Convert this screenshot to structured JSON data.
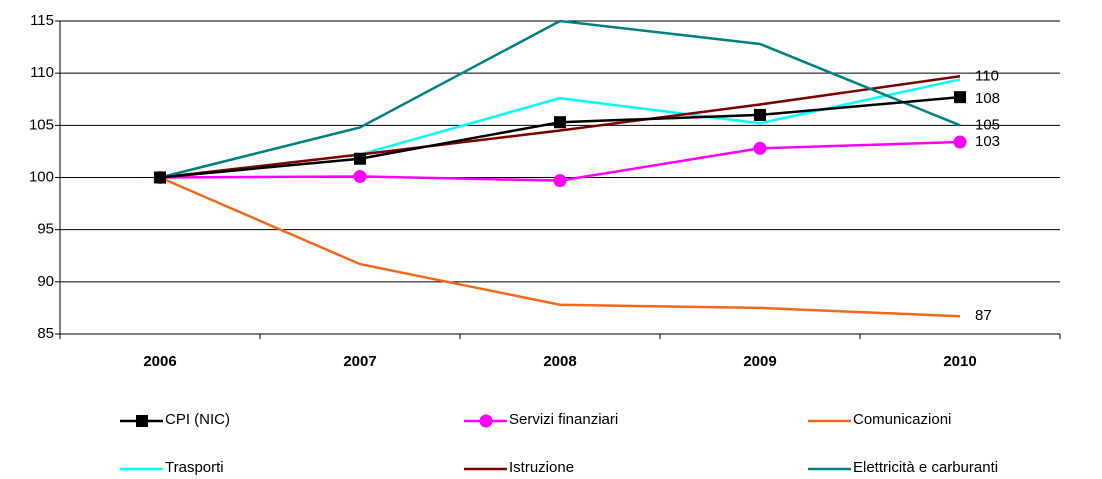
{
  "chart_data": {
    "type": "line",
    "categories": [
      "2006",
      "2007",
      "2008",
      "2009",
      "2010"
    ],
    "series": [
      {
        "name": "CPI (NIC)",
        "color": "#000000",
        "marker": "square",
        "values": [
          100,
          101.8,
          105.3,
          106,
          107.7
        ],
        "value_labels": [
          null,
          null,
          null,
          null,
          "108"
        ]
      },
      {
        "name": "Servizi finanziari",
        "color": "#ff00ff",
        "marker": "circle",
        "values": [
          100,
          100.1,
          99.7,
          102.8,
          103.4
        ],
        "value_labels": [
          null,
          null,
          null,
          null,
          "103"
        ]
      },
      {
        "name": "Comunicazioni",
        "color": "#f26b1d",
        "values": [
          100,
          91.7,
          87.8,
          87.5,
          86.7
        ],
        "value_labels": [
          null,
          null,
          null,
          null,
          "87"
        ]
      },
      {
        "name": "Trasporti",
        "color": "#00ffff",
        "values": [
          100,
          102.2,
          107.6,
          105.2,
          109.4
        ]
      },
      {
        "name": "Istruzione",
        "color": "#800000",
        "values": [
          100,
          102.2,
          104.5,
          107,
          109.7
        ],
        "value_labels": [
          null,
          null,
          null,
          null,
          "110"
        ]
      },
      {
        "name": "Elettricità e carburanti",
        "color": "#008080",
        "values": [
          100,
          104.8,
          115,
          112.8,
          105
        ],
        "value_labels": [
          null,
          null,
          null,
          null,
          "105"
        ]
      }
    ],
    "ylim": [
      85,
      115
    ],
    "yticks": [
      85,
      90,
      95,
      100,
      105,
      110,
      115
    ],
    "grid": true
  }
}
